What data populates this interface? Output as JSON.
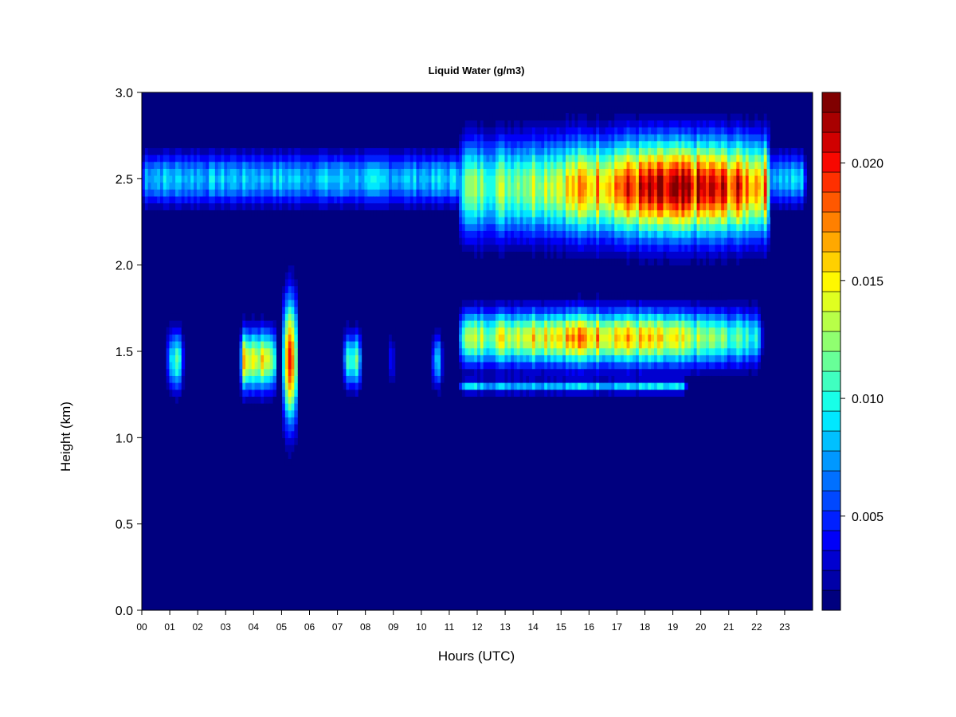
{
  "chart_data": {
    "type": "heatmap",
    "title": "Liquid Water (g/m3)",
    "xlabel": "Hours (UTC)",
    "ylabel": "Height (km)",
    "xlim": [
      0,
      24
    ],
    "ylim": [
      0,
      3.0
    ],
    "x_ticks": [
      "00",
      "01",
      "02",
      "03",
      "04",
      "05",
      "06",
      "07",
      "08",
      "09",
      "10",
      "11",
      "12",
      "13",
      "14",
      "15",
      "16",
      "17",
      "18",
      "19",
      "20",
      "21",
      "22",
      "23"
    ],
    "y_ticks": [
      "0.0",
      "0.5",
      "1.0",
      "1.5",
      "2.0",
      "2.5",
      "3.0"
    ],
    "colorbar": {
      "vmin": 0.001,
      "vmax": 0.023,
      "ticks": [
        "0.005",
        "0.010",
        "0.015",
        "0.020"
      ],
      "levels": 22,
      "colors": [
        "#00007F",
        "#0000A8",
        "#0000D0",
        "#0000F8",
        "#0020FF",
        "#0048FF",
        "#0070FF",
        "#0098FF",
        "#00C0FF",
        "#00E8FF",
        "#18FFE8",
        "#40FFC0",
        "#68FF98",
        "#90FF70",
        "#B8FF48",
        "#E0FF20",
        "#FFF800",
        "#FFD000",
        "#FFA800",
        "#FF8000",
        "#FF5800",
        "#FF3000",
        "#F80800",
        "#D00000",
        "#A80000",
        "#800000"
      ]
    },
    "background_value": 0,
    "layers": [
      {
        "name": "upper-layer",
        "x_range": [
          0,
          23.8
        ],
        "y_center": 2.5,
        "y_halfwidth": 0.19,
        "peak": 0.009
      },
      {
        "name": "upper-layer-thick",
        "x_range": [
          11.3,
          22.5
        ],
        "y_center": 2.45,
        "y_halfwidth": 0.35,
        "peak": 0.022,
        "peak_x": 19.3
      },
      {
        "name": "lower-layer",
        "x_range": [
          11.3,
          22.2
        ],
        "y_center": 1.58,
        "y_halfwidth": 0.2,
        "peak": 0.018,
        "peak_x": 15.8
      },
      {
        "name": "lower-layer-base",
        "x_range": [
          11.3,
          19.5
        ],
        "y_center": 1.3,
        "y_halfwidth": 0.05,
        "peak": 0.009
      },
      {
        "name": "convective-column",
        "x_range": [
          5.0,
          5.6
        ],
        "y_center": 1.45,
        "y_halfwidth": 0.45,
        "peak": 0.021,
        "peak_x": 5.3
      },
      {
        "name": "cell-01",
        "x_range": [
          0.9,
          1.5
        ],
        "y_center": 1.45,
        "y_halfwidth": 0.22,
        "peak": 0.011
      },
      {
        "name": "cell-04",
        "x_range": [
          3.5,
          4.8
        ],
        "y_center": 1.45,
        "y_halfwidth": 0.22,
        "peak": 0.016
      },
      {
        "name": "cell-07",
        "x_range": [
          7.2,
          7.9
        ],
        "y_center": 1.45,
        "y_halfwidth": 0.2,
        "peak": 0.012
      },
      {
        "name": "cell-09",
        "x_range": [
          8.85,
          9.0
        ],
        "y_center": 1.45,
        "y_halfwidth": 0.2,
        "peak": 0.011
      },
      {
        "name": "cell-10",
        "x_range": [
          10.4,
          10.75
        ],
        "y_center": 1.45,
        "y_halfwidth": 0.2,
        "peak": 0.01
      }
    ]
  }
}
